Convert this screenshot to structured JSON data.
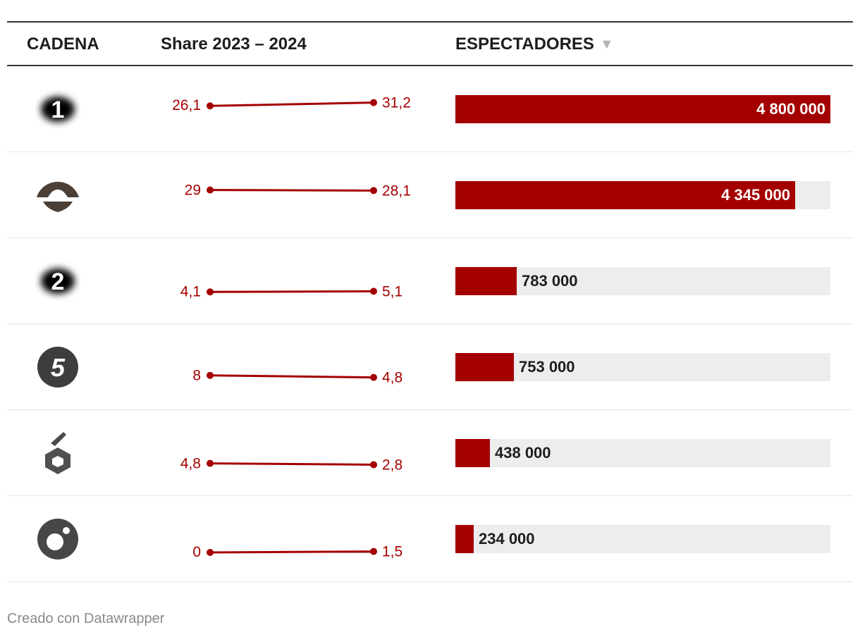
{
  "header": {
    "col_channel": "CADENA",
    "col_share": "Share 2023 – 2024",
    "col_viewers": "ESPECTADORES",
    "sort_icon": "sort-down-icon"
  },
  "chart_data": {
    "type": "table",
    "series": [
      {
        "name": "Share 2023",
        "values": [
          26.1,
          29,
          4.1,
          8,
          4.8,
          0
        ]
      },
      {
        "name": "Share 2024",
        "values": [
          31.2,
          28.1,
          5.1,
          4.8,
          2.8,
          1.5
        ]
      },
      {
        "name": "Espectadores",
        "values": [
          4800000,
          4345000,
          783000,
          753000,
          438000,
          234000
        ]
      }
    ],
    "rows": [
      {
        "logo": "la-1-logo",
        "logo_text": "1",
        "share_2023": 26.1,
        "share_2024": 31.2,
        "share_2023_label": "26,1",
        "share_2024_label": "31,2",
        "viewers": 4800000,
        "viewers_label": "4 800 000"
      },
      {
        "logo": "antena-3-logo",
        "logo_text": "",
        "share_2023": 29,
        "share_2024": 28.1,
        "share_2023_label": "29",
        "share_2024_label": "28,1",
        "viewers": 4345000,
        "viewers_label": "4 345 000"
      },
      {
        "logo": "la-2-logo",
        "logo_text": "2",
        "share_2023": 4.1,
        "share_2024": 5.1,
        "share_2023_label": "4,1",
        "share_2024_label": "5,1",
        "viewers": 783000,
        "viewers_label": "783 000"
      },
      {
        "logo": "telecinco-logo",
        "logo_text": "5",
        "share_2023": 8,
        "share_2024": 4.8,
        "share_2023_label": "8",
        "share_2024_label": "4,8",
        "viewers": 753000,
        "viewers_label": "753 000"
      },
      {
        "logo": "la-sexta-logo",
        "logo_text": "6",
        "share_2023": 4.8,
        "share_2024": 2.8,
        "share_2023_label": "4,8",
        "share_2024_label": "2,8",
        "viewers": 438000,
        "viewers_label": "438 000"
      },
      {
        "logo": "cuatro-logo",
        "logo_text": "",
        "share_2023": 0,
        "share_2024": 1.5,
        "share_2023_label": "0",
        "share_2024_label": "1,5",
        "viewers": 234000,
        "viewers_label": "234 000"
      }
    ],
    "viewers_max": 4800000,
    "colors": {
      "accent": "#a40000",
      "track": "#ededed"
    }
  },
  "footer": {
    "credit": "Creado con Datawrapper"
  }
}
